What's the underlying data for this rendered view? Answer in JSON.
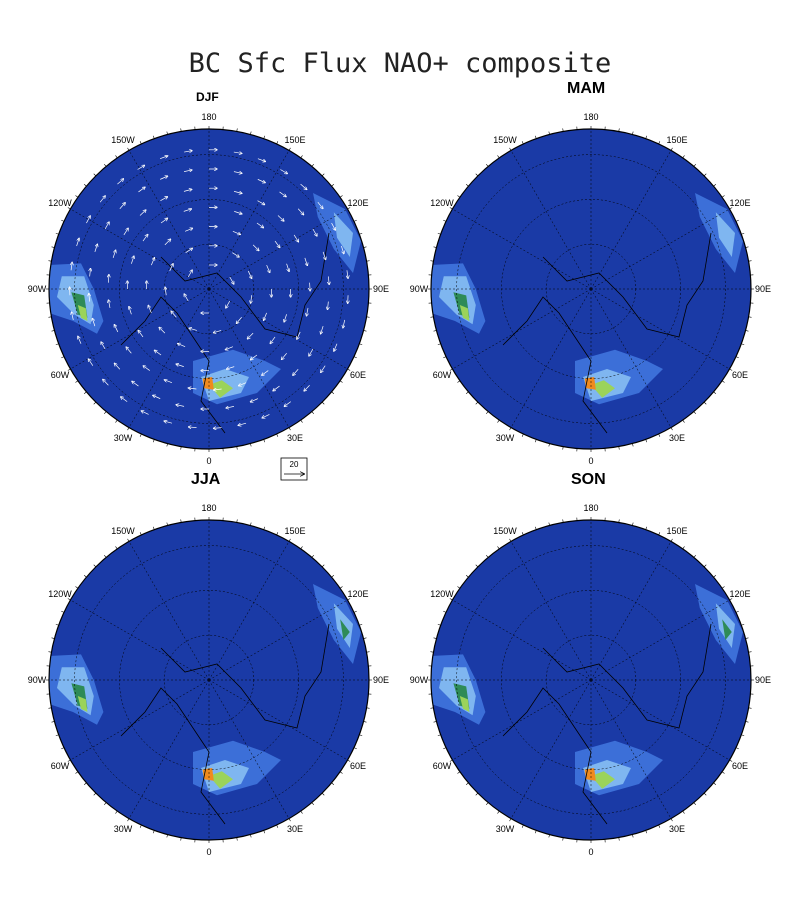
{
  "title": "BC Sfc Flux NAO+ composite",
  "panels": [
    {
      "id": "djf",
      "label": "DJF",
      "has_wind": true
    },
    {
      "id": "mam",
      "label": "MAM",
      "has_wind": false
    },
    {
      "id": "jja",
      "label": "JJA",
      "has_wind": false
    },
    {
      "id": "son",
      "label": "SON",
      "has_wind": false
    }
  ],
  "longitude_labels": [
    "180",
    "150E",
    "120E",
    "90E",
    "60E",
    "30E",
    "0",
    "30W",
    "60W",
    "90W",
    "120W",
    "150W"
  ],
  "reference_vector": {
    "label": "20"
  },
  "colors": {
    "background_fill": "#1a3aa6",
    "level1": "#3c6fd8",
    "level2": "#7fb6f0",
    "level3": "#bfe6f7",
    "level4": "#2e8b57",
    "level5": "#9bd35a",
    "level6": "#f0e442",
    "level7": "#f08a1e",
    "coast": "#000000",
    "wind": "#ffffff"
  }
}
